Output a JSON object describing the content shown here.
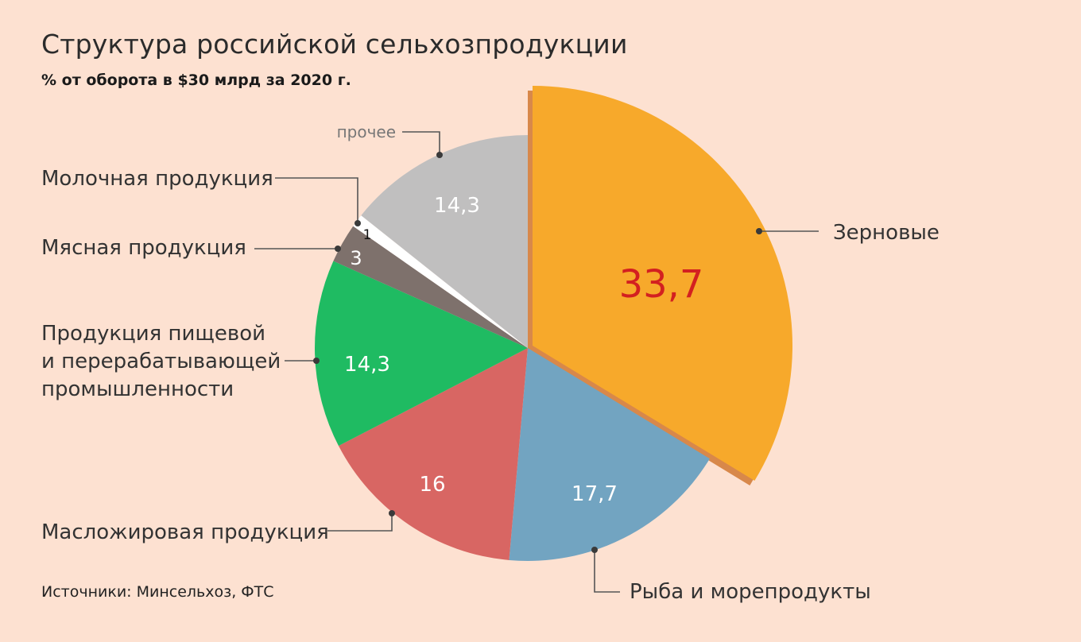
{
  "title": "Структура российской сельхозпродукции",
  "subtitle": "% от оборота в $30 млрд за 2020 г.",
  "source": "Источники: Минсельхоз, ФТС",
  "chart_data": {
    "type": "pie",
    "title": "Структура российской сельхозпродукции",
    "subtitle": "% от оборота в $30 млрд за 2020 г.",
    "slices": [
      {
        "name": "Зерновые",
        "value_label": "33,7",
        "value": 33.7,
        "color": "#f7a92b",
        "label_color": "#d32020",
        "exploded": true
      },
      {
        "name": "Рыба и морепродукты",
        "value_label": "17,7",
        "value": 17.7,
        "color": "#72a4c1",
        "label_color": "#ffffff"
      },
      {
        "name": "Масложировая продукция",
        "value_label": "16",
        "value": 16,
        "color": "#d86663",
        "label_color": "#ffffff"
      },
      {
        "name": "Продукция пищевой и перерабатывающей промышленности",
        "name_lines": [
          "Продукция пищевой",
          "и перерабатывающей",
          "промышленности"
        ],
        "value_label": "14,3",
        "value": 14.3,
        "color": "#1fbb62",
        "label_color": "#ffffff"
      },
      {
        "name": "Мясная продукция",
        "value_label": "3",
        "value": 3,
        "color": "#7e716c",
        "label_color": "#ffffff"
      },
      {
        "name": "Молочная продукция",
        "value_label": "1",
        "value": 1,
        "color": "#ffffff",
        "label_color": "#111111"
      },
      {
        "name": "прочее",
        "value_label": "14,3",
        "value": 14.3,
        "color": "#c0bfbf",
        "label_color": "#ffffff"
      }
    ],
    "shadow_color": "#d8884a",
    "leader_color": "#555555"
  }
}
